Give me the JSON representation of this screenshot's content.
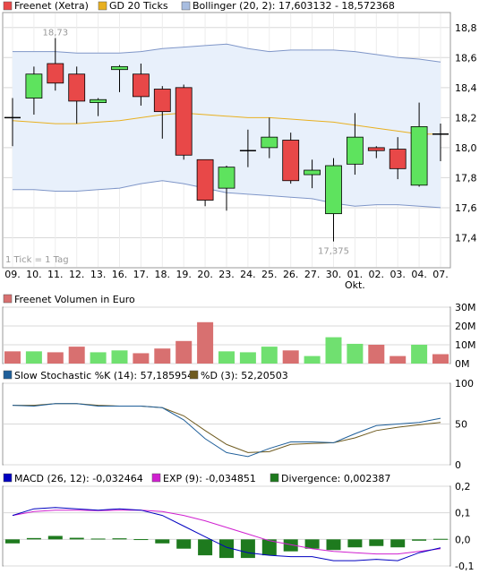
{
  "colors": {
    "up": "#5ee35e",
    "down": "#e84848",
    "vol_up": "#70e070",
    "vol_down": "#d87070",
    "gd": "#e8b020",
    "band_fill": "#e8f0fb",
    "band_line": "#7f96c8",
    "slow_k": "#1f5f9a",
    "d": "#6e5a1e",
    "macd": "#0000c0",
    "exp": "#d020d0",
    "divergence": "#1e7a1e"
  },
  "chart_data": [
    {
      "type": "candlestick",
      "id": "price",
      "legend": [
        {
          "label": "Freenet (Xetra)",
          "swatch": "#e84848"
        },
        {
          "label": "GD 20 Ticks",
          "swatch": "#e8b020"
        },
        {
          "label": "Bollinger (20, 2): 17,603132 - 18,572368",
          "swatch": "#a8bde0"
        }
      ],
      "ylim": [
        17.2,
        18.9
      ],
      "yticks": [
        "18,8",
        "18,6",
        "18,4",
        "18,2",
        "18,0",
        "17,8",
        "17,6",
        "17,4"
      ],
      "ytick_values": [
        18.8,
        18.6,
        18.4,
        18.2,
        18.0,
        17.8,
        17.6,
        17.4
      ],
      "categories": [
        "09.",
        "10.",
        "11.",
        "12.",
        "13.",
        "16.",
        "17.",
        "18.",
        "19.",
        "20.",
        "23.",
        "24.",
        "25.",
        "26.",
        "27.",
        "30.",
        "01.",
        "02.",
        "03.",
        "04.",
        "07."
      ],
      "month_label": "Okt.",
      "month_label_index": 16,
      "corner_label": "1 Tick = 1 Tag",
      "high_label": "18,73",
      "low_label": "17,375",
      "high_label_index": 2,
      "low_label_index": 15,
      "ohlc": [
        {
          "o": 18.2,
          "h": 18.33,
          "l": 18.01,
          "c": 18.2
        },
        {
          "o": 18.33,
          "h": 18.54,
          "l": 18.22,
          "c": 18.49
        },
        {
          "o": 18.56,
          "h": 18.73,
          "l": 18.38,
          "c": 18.43
        },
        {
          "o": 18.49,
          "h": 18.54,
          "l": 18.16,
          "c": 18.31
        },
        {
          "o": 18.3,
          "h": 18.33,
          "l": 18.21,
          "c": 18.32
        },
        {
          "o": 18.52,
          "h": 18.55,
          "l": 18.37,
          "c": 18.54
        },
        {
          "o": 18.49,
          "h": 18.56,
          "l": 18.28,
          "c": 18.34
        },
        {
          "o": 18.39,
          "h": 18.41,
          "l": 18.06,
          "c": 18.24
        },
        {
          "o": 18.4,
          "h": 18.42,
          "l": 17.92,
          "c": 17.95
        },
        {
          "o": 17.92,
          "h": 17.92,
          "l": 17.61,
          "c": 17.65
        },
        {
          "o": 17.73,
          "h": 17.88,
          "l": 17.58,
          "c": 17.87
        },
        {
          "o": 17.98,
          "h": 18.12,
          "l": 17.87,
          "c": 17.98
        },
        {
          "o": 18.0,
          "h": 18.2,
          "l": 17.93,
          "c": 18.07
        },
        {
          "o": 18.05,
          "h": 18.1,
          "l": 17.76,
          "c": 17.78
        },
        {
          "o": 17.82,
          "h": 17.92,
          "l": 17.73,
          "c": 17.85
        },
        {
          "o": 17.56,
          "h": 17.93,
          "l": 17.375,
          "c": 17.88
        },
        {
          "o": 17.89,
          "h": 18.23,
          "l": 17.82,
          "c": 18.07
        },
        {
          "o": 18.0,
          "h": 18.01,
          "l": 17.93,
          "c": 17.98
        },
        {
          "o": 17.99,
          "h": 18.07,
          "l": 17.79,
          "c": 17.86
        },
        {
          "o": 17.75,
          "h": 18.3,
          "l": 17.74,
          "c": 18.14
        },
        {
          "o": 18.09,
          "h": 18.16,
          "l": 17.91,
          "c": 18.09
        }
      ],
      "gd20": [
        18.18,
        18.17,
        18.16,
        18.16,
        18.17,
        18.18,
        18.2,
        18.22,
        18.23,
        18.22,
        18.21,
        18.2,
        18.2,
        18.19,
        18.18,
        18.17,
        18.15,
        18.13,
        18.11,
        18.09,
        18.09
      ],
      "boll_upper": [
        18.64,
        18.64,
        18.64,
        18.63,
        18.63,
        18.63,
        18.64,
        18.66,
        18.67,
        18.68,
        18.69,
        18.66,
        18.64,
        18.65,
        18.65,
        18.65,
        18.64,
        18.62,
        18.6,
        18.59,
        18.57
      ],
      "boll_lower": [
        17.72,
        17.72,
        17.71,
        17.71,
        17.72,
        17.73,
        17.76,
        17.78,
        17.76,
        17.73,
        17.7,
        17.69,
        17.68,
        17.67,
        17.66,
        17.63,
        17.61,
        17.62,
        17.62,
        17.61,
        17.6
      ]
    },
    {
      "type": "bar",
      "id": "volume",
      "title": "Freenet Volumen in Euro",
      "ylim": [
        0,
        30
      ],
      "yticks": [
        "30M",
        "20M",
        "10M",
        "0M"
      ],
      "ytick_values": [
        30,
        20,
        10,
        0
      ],
      "values": [
        6.5,
        6.5,
        6.0,
        9.0,
        6.0,
        7.0,
        5.5,
        8.0,
        12.0,
        22.0,
        6.5,
        6.0,
        9.0,
        7.0,
        4.0,
        14.0,
        10.5,
        10.0,
        4.0,
        10.0,
        5.0
      ],
      "direction": [
        "down",
        "up",
        "down",
        "down",
        "up",
        "up",
        "down",
        "down",
        "down",
        "down",
        "up",
        "up",
        "up",
        "down",
        "up",
        "up",
        "up",
        "down",
        "down",
        "up",
        "down"
      ]
    },
    {
      "type": "line",
      "id": "stochastic",
      "series": [
        {
          "name": "Slow Stochastic %K (14): 57,185954",
          "color": "#1f5f9a",
          "values": [
            73,
            72,
            75,
            75,
            72,
            72,
            72,
            70,
            55,
            32,
            15,
            10,
            20,
            28,
            28,
            27,
            38,
            48,
            50,
            52,
            57
          ]
        },
        {
          "name": "%D (3): 52,20503",
          "color": "#6e5a1e",
          "values": [
            73,
            73,
            75,
            75,
            73,
            72,
            72,
            70,
            60,
            42,
            25,
            15,
            16,
            25,
            26,
            27,
            33,
            42,
            46,
            49,
            52
          ]
        }
      ],
      "ylim": [
        0,
        100
      ],
      "yticks": [
        "100",
        "50",
        "0"
      ],
      "ytick_values": [
        100,
        50,
        0
      ]
    },
    {
      "type": "line",
      "id": "macd",
      "series": [
        {
          "name": "MACD (26, 12): -0,032464",
          "color": "#0000c0",
          "values": [
            0.09,
            0.115,
            0.12,
            0.115,
            0.11,
            0.115,
            0.11,
            0.09,
            0.05,
            0.01,
            -0.03,
            -0.05,
            -0.06,
            -0.065,
            -0.065,
            -0.08,
            -0.08,
            -0.075,
            -0.08,
            -0.05,
            -0.032
          ]
        },
        {
          "name": "EXP (9): -0,034851",
          "color": "#d020d0",
          "values": [
            0.09,
            0.105,
            0.11,
            0.11,
            0.108,
            0.11,
            0.11,
            0.105,
            0.09,
            0.07,
            0.045,
            0.02,
            -0.005,
            -0.02,
            -0.035,
            -0.045,
            -0.05,
            -0.055,
            -0.055,
            -0.045,
            -0.035
          ]
        },
        {
          "name": "Divergence: 0,002387",
          "color": "#1e7a1e",
          "type": "bar",
          "values": [
            -0.015,
            0.005,
            0.013,
            0.006,
            0.003,
            0.004,
            0.001,
            -0.015,
            -0.035,
            -0.06,
            -0.07,
            -0.07,
            -0.06,
            -0.045,
            -0.035,
            -0.04,
            -0.03,
            -0.025,
            -0.03,
            -0.005,
            0.002
          ]
        }
      ],
      "ylim": [
        -0.1,
        0.2
      ],
      "yticks": [
        "0,2",
        "0,1",
        "0,0",
        "-0,1"
      ],
      "ytick_values": [
        0.2,
        0.1,
        0.0,
        -0.1
      ]
    }
  ]
}
